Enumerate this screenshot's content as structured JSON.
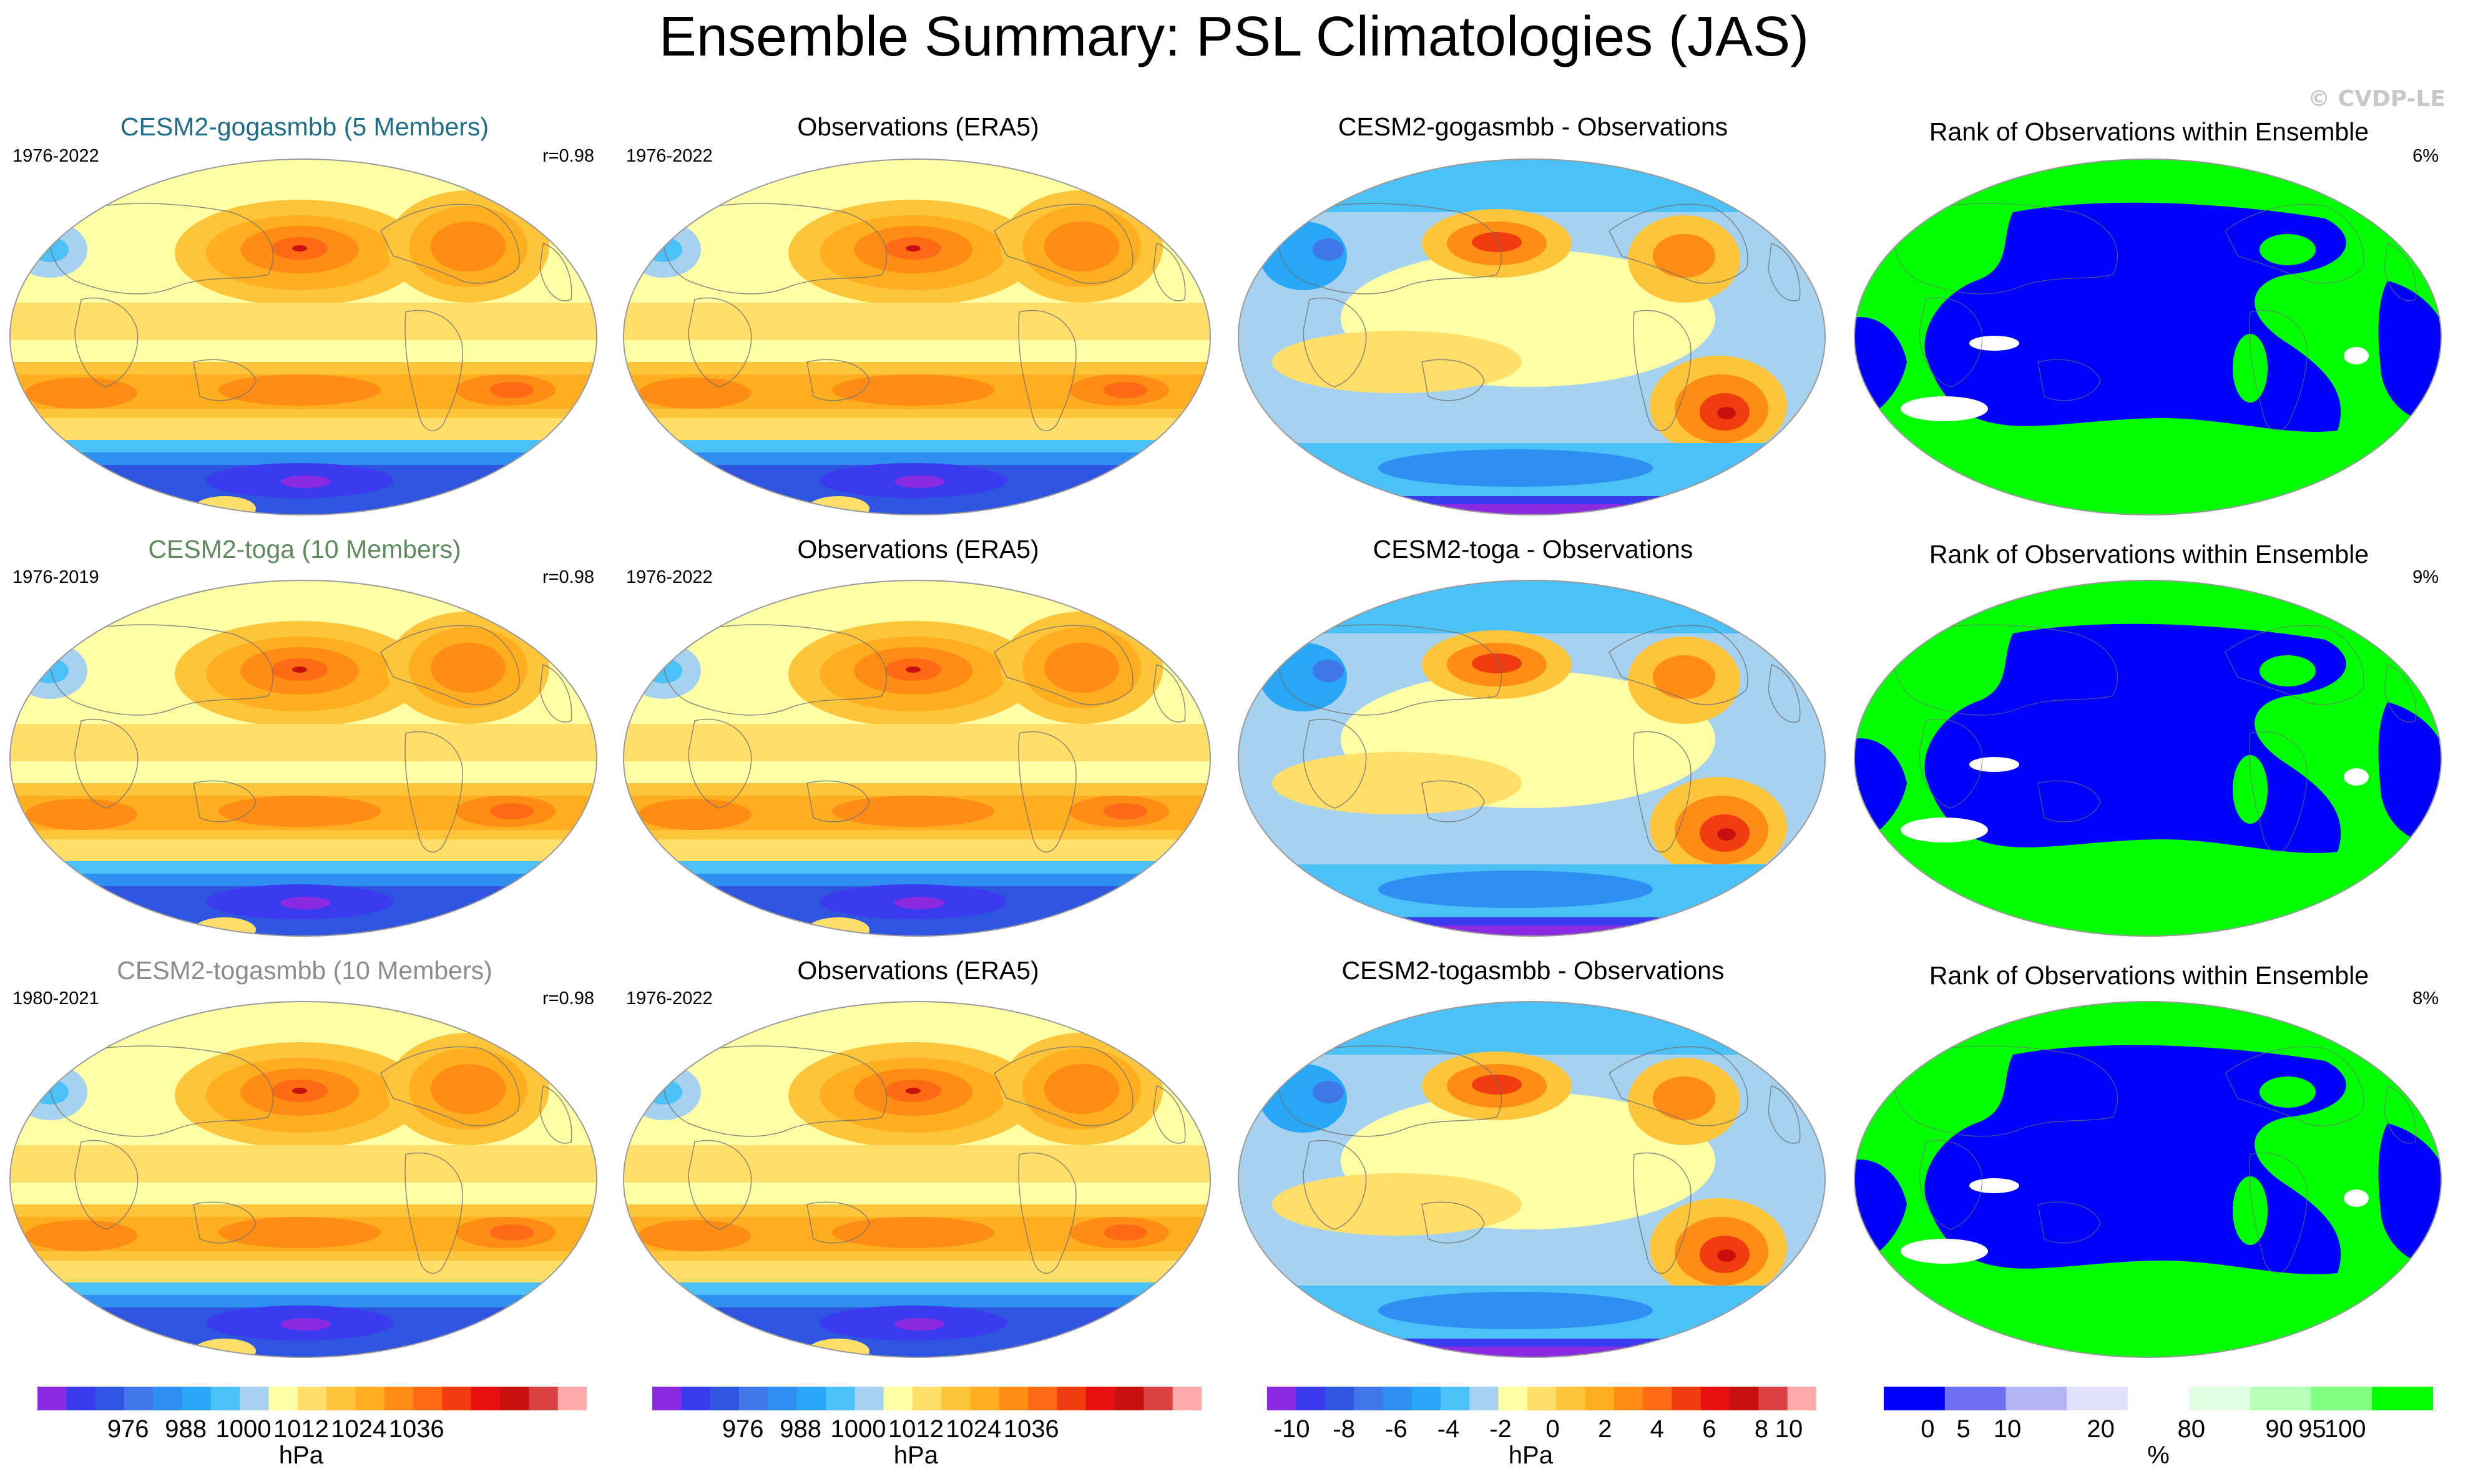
{
  "title": "Ensemble Summary: PSL Climatologies (JAS)",
  "watermark": "© CVDP-LE",
  "rows": [
    {
      "model": {
        "title": "CESM2-gogasmbb (5 Members)",
        "title_color": "#1f6d86",
        "period": "1976-2022",
        "corr": "r=0.98"
      },
      "obs": {
        "title": "Observations (ERA5)",
        "period": "1976-2022"
      },
      "diff": {
        "title": "CESM2-gogasmbb - Observations"
      },
      "rank": {
        "title": "Rank of Observations within Ensemble",
        "pct": "6%"
      }
    },
    {
      "model": {
        "title": "CESM2-toga (10 Members)",
        "title_color": "#5e8a5e",
        "period": "1976-2019",
        "corr": "r=0.98"
      },
      "obs": {
        "title": "Observations (ERA5)",
        "period": "1976-2022"
      },
      "diff": {
        "title": "CESM2-toga - Observations"
      },
      "rank": {
        "title": "Rank of Observations within Ensemble",
        "pct": "9%"
      }
    },
    {
      "model": {
        "title": "CESM2-togasmbb (10 Members)",
        "title_color": "#8c8c8c",
        "period": "1980-2021",
        "corr": "r=0.98"
      },
      "obs": {
        "title": "Observations (ERA5)",
        "period": "1976-2022"
      },
      "diff": {
        "title": "CESM2-togasmbb - Observations"
      },
      "rank": {
        "title": "Rank of Observations within Ensemble",
        "pct": "8%"
      }
    }
  ],
  "colorbars": [
    {
      "ticks": [
        "976",
        "988",
        "1000",
        "1012",
        "1024",
        "1036"
      ],
      "unit": "hPa"
    },
    {
      "ticks": [
        "976",
        "988",
        "1000",
        "1012",
        "1024",
        "1036"
      ],
      "unit": "hPa"
    },
    {
      "ticks": [
        "-10",
        "-8",
        "-6",
        "-4",
        "-2",
        "0",
        "2",
        "4",
        "6",
        "8",
        "10"
      ],
      "unit": "hPa"
    },
    {
      "ticks": [
        "0",
        "5",
        "10",
        "20",
        "80",
        "90",
        "95",
        "100"
      ],
      "unit": "%"
    }
  ],
  "colors": {
    "clim_palette": [
      "#8a2be2",
      "#3a3aef",
      "#2f55e0",
      "#3f78e6",
      "#2f8ff0",
      "#27a7f5",
      "#4bc1f7",
      "#a6d2ef",
      "#ffffa6",
      "#ffdf6a",
      "#ffc53a",
      "#ffae20",
      "#ff8c14",
      "#ff6a14",
      "#f03c0e",
      "#e61010",
      "#c81010",
      "#d94040",
      "#ffaaaa"
    ],
    "diff_palette": [
      "#8a2be2",
      "#3a3aef",
      "#2f55e0",
      "#3f78e6",
      "#2f8ff0",
      "#27a7f5",
      "#4bc1f7",
      "#a6d2ef",
      "#ffffa6",
      "#ffdf6a",
      "#ffc53a",
      "#ffae20",
      "#ff8c14",
      "#ff6a14",
      "#f03c0e",
      "#e61010",
      "#c81010",
      "#d94040",
      "#ffaaaa"
    ],
    "rank_palette": [
      "#0000ff",
      "#7070f5",
      "#b5b5f5",
      "#e1e1fb",
      "#ffffff",
      "#e0ffe0",
      "#b8ffb8",
      "#80ff80",
      "#00ff00"
    ],
    "land_outline": "#707070",
    "map_border": "#9a9a9a"
  }
}
